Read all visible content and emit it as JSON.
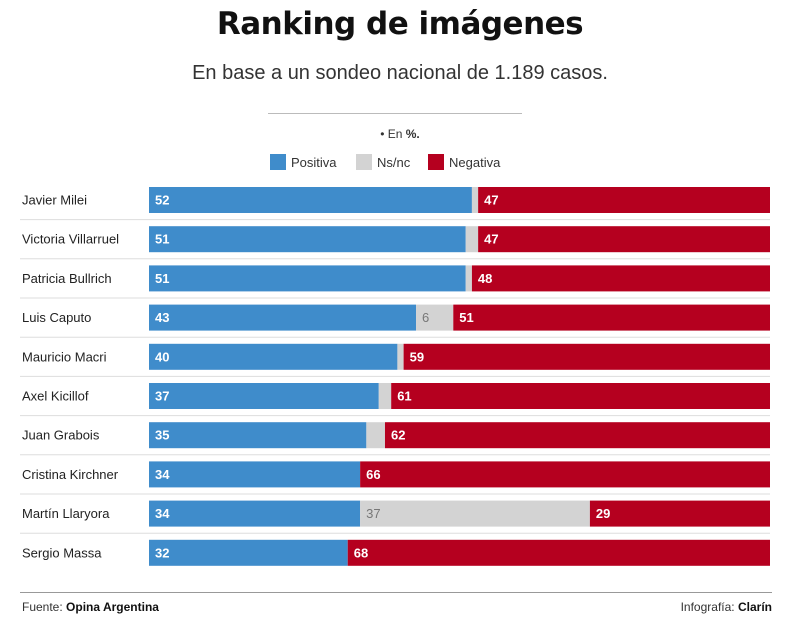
{
  "header": {
    "title": "Ranking de imágenes",
    "subtitle": "En base a un sondeo nacional de 1.189 casos.",
    "unit_prefix": "• En",
    "unit_value": "%."
  },
  "colors": {
    "positiva": "#3f8ccb",
    "nsnc": "#d3d3d3",
    "negativa": "#b5001f"
  },
  "footer": {
    "source_label": "Fuente:",
    "source_value": "Opina Argentina",
    "credit_label": "Infografía:",
    "credit_value": "Clarín"
  },
  "chart_data": {
    "type": "bar",
    "stacked": true,
    "orientation": "horizontal",
    "categories": [
      "Javier Milei",
      "Victoria Villarruel",
      "Patricia Bullrich",
      "Luis Caputo",
      "Mauricio Macri",
      "Axel Kicillof",
      "Juan Grabois",
      "Cristina Kirchner",
      "Martín Llaryora",
      "Sergio Massa"
    ],
    "series": [
      {
        "name": "Positiva",
        "color": "#3f8ccb",
        "values": [
          52,
          51,
          51,
          43,
          40,
          37,
          35,
          34,
          34,
          32
        ]
      },
      {
        "name": "Ns/nc",
        "color": "#d3d3d3",
        "values": [
          1,
          2,
          1,
          6,
          1,
          2,
          3,
          0,
          37,
          0
        ]
      },
      {
        "name": "Negativa",
        "color": "#b5001f",
        "values": [
          47,
          47,
          48,
          51,
          59,
          61,
          62,
          66,
          29,
          68
        ]
      }
    ],
    "labels": {
      "positiva": [
        "52",
        "51",
        "51",
        "43",
        "40",
        "37",
        "35",
        "34",
        "34",
        "32"
      ],
      "nsnc": [
        "",
        "",
        "",
        "6",
        "",
        "",
        "",
        "",
        "37",
        ""
      ],
      "negativa": [
        "47",
        "47",
        "48",
        "51",
        "59",
        "61",
        "62",
        "66",
        "29",
        "68"
      ]
    },
    "xlim": [
      0,
      100
    ],
    "legend_position": "top-center"
  }
}
